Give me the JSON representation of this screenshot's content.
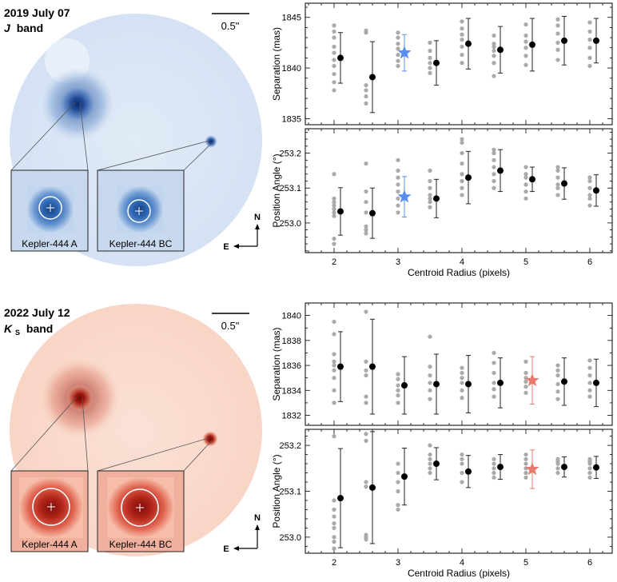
{
  "colors": {
    "j_band_star": "#5b8def",
    "ks_band_star": "#e8796c",
    "scatter_points": "#a9a9a9",
    "mean_points": "#000000",
    "j_band_image": "#2a5fa8",
    "ks_band_image": "#b51c12"
  },
  "compass": {
    "north": "N",
    "east": "E"
  },
  "scale_bar_label": "0.5\"",
  "chart_data": [
    {
      "type": "image",
      "title_line1": "2019 July 07",
      "band_letter": "J",
      "band_sub": "",
      "band_word": "band",
      "scale_bar_label": "0.5\"",
      "insets": [
        "Kepler-444 A",
        "Kepler-444 BC"
      ]
    },
    {
      "type": "image",
      "title_line1": "2022 July 12",
      "band_letter": "K",
      "band_sub": "S",
      "band_word": "band",
      "scale_bar_label": "0.5\"",
      "insets": [
        "Kepler-444 A",
        "Kepler-444 BC"
      ]
    },
    {
      "type": "scatter",
      "ylabel": "Separation (mas)",
      "xlim": [
        1.55,
        6.35
      ],
      "ylim": [
        1834.4,
        1846.4
      ],
      "yticks": [
        1835,
        1840,
        1845
      ],
      "xticks": [
        2,
        3,
        4,
        5,
        6
      ],
      "mean_x": [
        2.1,
        2.6,
        3.6,
        4.1,
        4.6,
        5.1,
        5.6,
        6.1
      ],
      "mean": [
        1841.0,
        1839.1,
        1840.5,
        1842.4,
        1841.8,
        1842.3,
        1842.7,
        1842.7
      ],
      "err": [
        2.5,
        3.5,
        2.2,
        2.5,
        2.3,
        2.6,
        2.4,
        2.2
      ],
      "samples": [
        [
          1837.6,
          1838.5,
          1839.2,
          1840.5,
          1841.0,
          1841.5,
          1842.1,
          1843.2,
          1844.0
        ],
        [
          1836.6,
          1837.1,
          1837.6,
          1838.2,
          1838.6,
          1843.6
        ],
        [
          1839.6,
          1840.1,
          1840.5,
          1840.8,
          1841.0,
          1841.3,
          1842.3,
          1842.8
        ],
        [
          1840.0,
          1841.2,
          1841.8,
          1842.3,
          1842.9,
          1843.4,
          1844.0,
          1844.4
        ],
        [
          1839.2,
          1840.5,
          1841.3,
          1841.8,
          1842.3,
          1842.6
        ],
        [
          1840.0,
          1841.0,
          1841.6,
          1842.0,
          1842.4,
          1843.0,
          1844.1
        ],
        [
          1840.6,
          1841.5,
          1842.2,
          1842.9,
          1843.6,
          1844.3,
          1844.8
        ],
        [
          1840.3,
          1841.3,
          1842.0,
          1842.7,
          1843.4,
          1844.2,
          1844.9
        ]
      ],
      "samples_x": [
        2.0,
        2.5,
        3.0,
        3.5,
        4.0,
        4.5,
        5.0,
        5.5,
        6.0
      ],
      "samples_col": [
        [
          1837.8,
          1838.6,
          1839.4,
          1840.2,
          1840.8,
          1841.5,
          1842.1,
          1843.0,
          1843.6,
          1844.2
        ],
        [
          1836.5,
          1837.2,
          1837.8,
          1838.3,
          1843.5,
          1843.7
        ],
        [
          1840.2,
          1840.7,
          1841.3,
          1841.9,
          1842.4,
          1843.0,
          1843.5
        ],
        [
          1839.5,
          1840.0,
          1840.5,
          1841.0,
          1841.7,
          1842.5
        ],
        [
          1840.5,
          1841.3,
          1842.1,
          1842.8,
          1843.3,
          1843.9,
          1844.6
        ],
        [
          1839.2,
          1840.5,
          1841.2,
          1841.7,
          1842.1,
          1842.4,
          1843.2
        ],
        [
          1840.3,
          1841.2,
          1842.0,
          1842.6,
          1843.2,
          1844.3
        ],
        [
          1840.8,
          1841.8,
          1842.5,
          1843.4,
          1844.2,
          1844.8
        ],
        [
          1840.2,
          1841.0,
          1842.0,
          1842.8,
          1843.6,
          1844.5
        ]
      ],
      "star": {
        "x": 3.1,
        "y": 1841.5,
        "err": 1.8
      }
    },
    {
      "type": "scatter",
      "ylabel": "Position Angle (°)",
      "xlabel": "Centroid Radius (pixels)",
      "xlim": [
        1.55,
        6.35
      ],
      "ylim": [
        252.915,
        253.27
      ],
      "yticks": [
        253.0,
        253.1,
        253.2
      ],
      "ytick_labels": [
        "253.0",
        "253.1",
        "253.2"
      ],
      "xticks": [
        2,
        3,
        4,
        5,
        6
      ],
      "mean_x": [
        2.1,
        2.6,
        3.6,
        4.1,
        4.6,
        5.1,
        5.6,
        6.1
      ],
      "mean": [
        253.033,
        253.028,
        253.07,
        253.13,
        253.15,
        253.125,
        253.113,
        253.093
      ],
      "err": [
        0.068,
        0.072,
        0.055,
        0.075,
        0.06,
        0.035,
        0.045,
        0.045
      ],
      "samples_x": [
        2.0,
        2.5,
        3.0,
        3.5,
        4.0,
        4.5,
        5.0,
        5.5,
        6.0
      ],
      "samples_col": [
        [
          252.94,
          252.955,
          253.02,
          253.03,
          253.04,
          253.05,
          253.06,
          253.07,
          253.14
        ],
        [
          252.97,
          252.98,
          252.99,
          253.03,
          253.06,
          253.09,
          253.17
        ],
        [
          253.03,
          253.05,
          253.07,
          253.09,
          253.11,
          253.13,
          253.15,
          253.18
        ],
        [
          253.045,
          253.06,
          253.07,
          253.08,
          253.1,
          253.12,
          253.15
        ],
        [
          253.08,
          253.1,
          253.12,
          253.14,
          253.17,
          253.2,
          253.23,
          253.24
        ],
        [
          253.1,
          253.12,
          253.14,
          253.16,
          253.18,
          253.2,
          253.21
        ],
        [
          253.07,
          253.09,
          253.11,
          253.13,
          253.14,
          253.16
        ],
        [
          253.08,
          253.1,
          253.11,
          253.13,
          253.15,
          253.16
        ],
        [
          253.05,
          253.07,
          253.08,
          253.1,
          253.12,
          253.13
        ]
      ],
      "star": {
        "x": 3.1,
        "y": 253.075,
        "err": 0.058
      }
    },
    {
      "type": "scatter",
      "ylabel": "Separation (mas)",
      "xlim": [
        1.55,
        6.35
      ],
      "ylim": [
        1831.2,
        1841.0
      ],
      "yticks": [
        1832,
        1834,
        1836,
        1838,
        1840
      ],
      "xticks": [
        2,
        3,
        4,
        5,
        6
      ],
      "mean_x": [
        2.1,
        2.6,
        3.1,
        3.6,
        4.1,
        4.6,
        5.6,
        6.1
      ],
      "mean": [
        1835.9,
        1835.9,
        1834.4,
        1834.5,
        1834.5,
        1834.6,
        1834.7,
        1834.6
      ],
      "err": [
        2.8,
        3.8,
        2.3,
        2.4,
        2.3,
        2.0,
        1.9,
        1.9
      ],
      "samples_x": [
        2.0,
        2.5,
        3.0,
        3.5,
        4.0,
        4.5,
        5.0,
        5.5,
        6.0
      ],
      "samples_col": [
        [
          1833.0,
          1834.0,
          1835.0,
          1835.6,
          1836.0,
          1836.3,
          1836.9,
          1838.5,
          1839.5
        ],
        [
          1833.0,
          1833.5,
          1835.2,
          1835.6,
          1836.3,
          1840.3
        ],
        [
          1833.0,
          1833.6,
          1834.0,
          1834.4,
          1834.9,
          1835.3
        ],
        [
          1833.3,
          1834.0,
          1834.6,
          1835.2,
          1835.9,
          1838.3
        ],
        [
          1833.4,
          1834.0,
          1834.6,
          1835.0,
          1835.4,
          1835.8
        ],
        [
          1833.5,
          1834.1,
          1834.6,
          1835.4,
          1836.2,
          1837.0
        ],
        [
          1833.8,
          1834.3,
          1834.7,
          1835.0,
          1835.4,
          1836.3
        ],
        [
          1833.3,
          1833.9,
          1834.5,
          1835.2,
          1835.6,
          1836.0
        ],
        [
          1833.5,
          1834.0,
          1834.6,
          1835.2,
          1835.8,
          1836.4
        ]
      ],
      "star": {
        "x": 5.1,
        "y": 1834.8,
        "err": 1.9
      }
    },
    {
      "type": "scatter",
      "ylabel": "Position Angle (°)",
      "xlabel": "Centroid Radius (pixels)",
      "xlim": [
        1.55,
        6.35
      ],
      "ylim": [
        252.965,
        253.235
      ],
      "yticks": [
        253.0,
        253.1,
        253.2
      ],
      "ytick_labels": [
        "253.0",
        "253.1",
        "253.2"
      ],
      "xticks": [
        2,
        3,
        4,
        5,
        6
      ],
      "mean_x": [
        2.1,
        2.6,
        3.1,
        3.6,
        4.1,
        4.6,
        5.6,
        6.1
      ],
      "mean": [
        253.085,
        253.108,
        253.132,
        253.16,
        253.143,
        253.153,
        253.153,
        253.152
      ],
      "err": [
        0.108,
        0.122,
        0.062,
        0.035,
        0.035,
        0.027,
        0.022,
        0.024
      ],
      "samples_x": [
        2.0,
        2.5,
        3.0,
        3.5,
        4.0,
        4.5,
        5.0,
        5.5,
        6.0
      ],
      "samples_col": [
        [
          252.975,
          252.99,
          253.0,
          253.02,
          253.03,
          253.045,
          253.06,
          253.08,
          253.22
        ],
        [
          252.995,
          253.0,
          253.005,
          253.11,
          253.12,
          253.21,
          253.225
        ],
        [
          253.06,
          253.07,
          253.1,
          253.12,
          253.14,
          253.16
        ],
        [
          253.14,
          253.15,
          253.16,
          253.17,
          253.18,
          253.2
        ],
        [
          253.12,
          253.14,
          253.16,
          253.17,
          253.18
        ],
        [
          253.13,
          253.14,
          253.15,
          253.16,
          253.17
        ],
        [
          253.13,
          253.14,
          253.15,
          253.16,
          253.17,
          253.18
        ],
        [
          253.14,
          253.15,
          253.16,
          253.165,
          253.17
        ],
        [
          253.13,
          253.14,
          253.15,
          253.16,
          253.165,
          253.17
        ]
      ],
      "star": {
        "x": 5.1,
        "y": 253.148,
        "err": 0.042
      }
    }
  ]
}
